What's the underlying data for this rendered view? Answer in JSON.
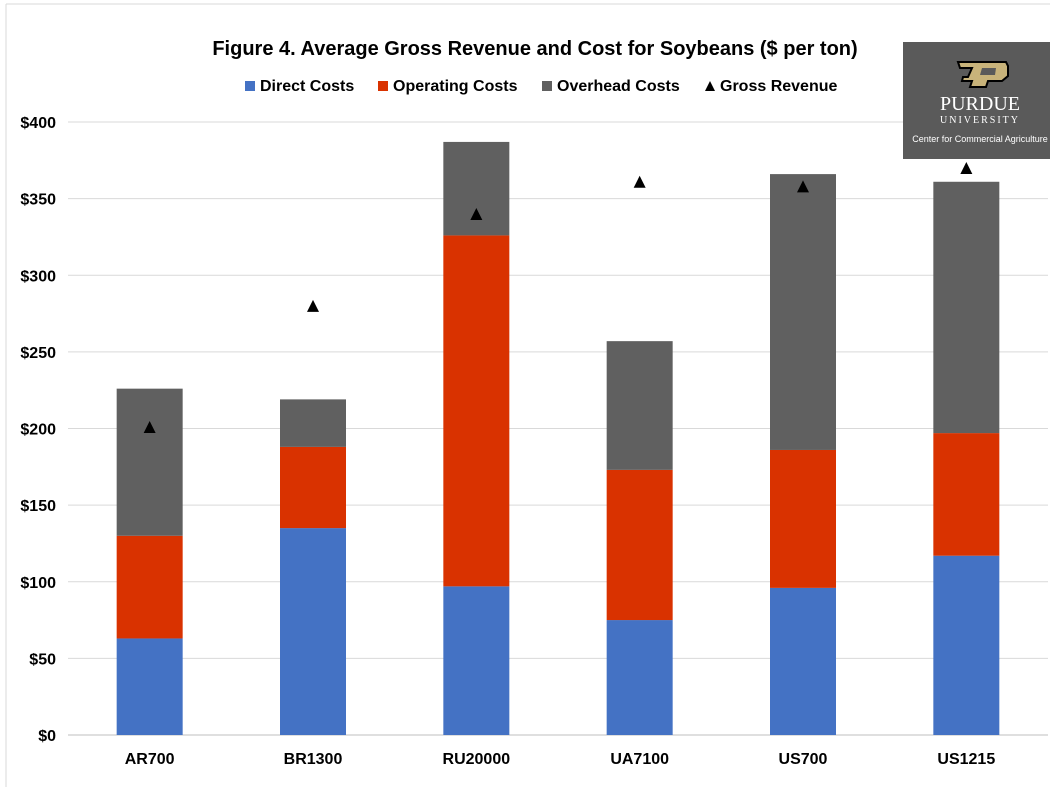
{
  "chart_data": {
    "type": "bar",
    "stacked": true,
    "title": "Figure 4. Average Gross Revenue and Cost for Soybeans ($ per ton)",
    "categories": [
      "AR700",
      "BR1300",
      "RU20000",
      "UA7100",
      "US700",
      "US1215"
    ],
    "series": [
      {
        "name": "Direct Costs",
        "color": "#4472c4",
        "values": [
          63,
          135,
          97,
          75,
          96,
          117
        ]
      },
      {
        "name": "Operating Costs",
        "color": "#d93200",
        "values": [
          67,
          53,
          229,
          98,
          90,
          80
        ]
      },
      {
        "name": "Overhead Costs",
        "color": "#606060",
        "values": [
          96,
          31,
          61,
          84,
          180,
          164
        ]
      }
    ],
    "markers": {
      "name": "Gross Revenue",
      "shape": "triangle",
      "color": "#000000",
      "values": [
        201,
        280,
        340,
        361,
        358,
        370
      ]
    },
    "ylim": [
      0,
      400
    ],
    "yticks": [
      0,
      50,
      100,
      150,
      200,
      250,
      300,
      350,
      400
    ],
    "ytick_labels": [
      "$0",
      "$50",
      "$100",
      "$150",
      "$200",
      "$250",
      "$300",
      "$350",
      "$400"
    ],
    "grid": true,
    "legend_position": "top"
  },
  "logo": {
    "wordmark": "PURDUE",
    "subline": "UNIVERSITY",
    "caption": "Center for Commercial Agriculture",
    "background": "#5a5a5a"
  }
}
